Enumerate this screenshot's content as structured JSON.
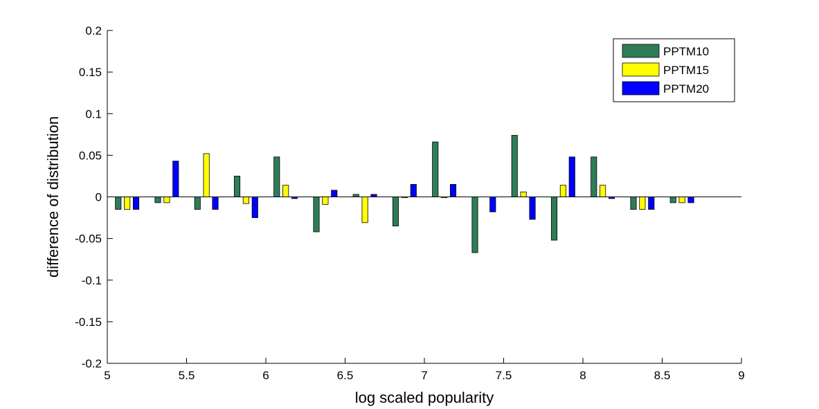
{
  "chart_data": {
    "type": "bar",
    "title": "",
    "xlabel": "log scaled popularity",
    "ylabel": "difference of distribution",
    "xlim": [
      5,
      9
    ],
    "ylim": [
      -0.2,
      0.2
    ],
    "xticks": [
      "5",
      "5.5",
      "6",
      "6.5",
      "7",
      "7.5",
      "8",
      "8.5",
      "9"
    ],
    "yticks": [
      "-0.2",
      "-0.15",
      "-0.1",
      "-0.05",
      "0",
      "0.05",
      "0.1",
      "0.15",
      "0.2"
    ],
    "grid": false,
    "legend_position": "top-right",
    "categories": [
      5.125,
      5.375,
      5.625,
      5.875,
      6.125,
      6.375,
      6.625,
      6.875,
      7.125,
      7.375,
      7.625,
      7.875,
      8.125,
      8.375,
      8.625
    ],
    "series": [
      {
        "name": "PPTM10",
        "color": "#2e7d57",
        "values": [
          -0.015,
          -0.007,
          -0.015,
          0.025,
          0.048,
          -0.042,
          0.003,
          -0.035,
          0.066,
          -0.067,
          0.074,
          -0.052,
          0.048,
          -0.015,
          -0.007
        ]
      },
      {
        "name": "PPTM15",
        "color": "#ffff00",
        "values": [
          -0.015,
          -0.007,
          0.052,
          -0.008,
          0.014,
          -0.009,
          -0.031,
          -0.001,
          -0.001,
          0.0,
          0.006,
          0.014,
          0.014,
          -0.015,
          -0.007
        ]
      },
      {
        "name": "PPTM20",
        "color": "#0000ff",
        "values": [
          -0.015,
          0.043,
          -0.015,
          -0.025,
          -0.002,
          0.008,
          0.003,
          0.015,
          0.015,
          -0.018,
          -0.027,
          0.048,
          -0.002,
          -0.015,
          -0.007
        ]
      }
    ]
  }
}
